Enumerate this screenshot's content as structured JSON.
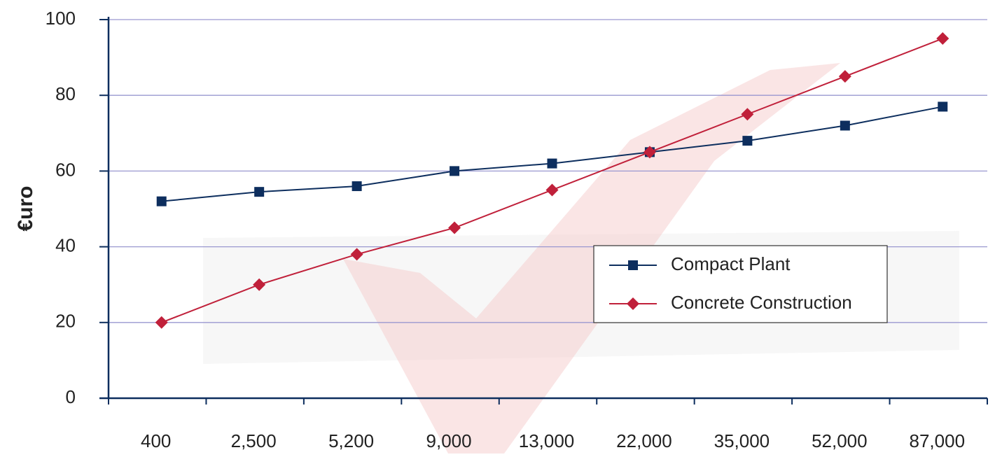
{
  "chart_data": {
    "type": "line",
    "y_label": "€uro",
    "categories": [
      "400",
      "2,500",
      "5,200",
      "9,000",
      "13,000",
      "22,000",
      "35,000",
      "52,000",
      "87,000"
    ],
    "series": [
      {
        "name": "Compact Plant",
        "color": "#0d2e5e",
        "marker": "square",
        "values": [
          52,
          54.5,
          56,
          60,
          62,
          65,
          68,
          72,
          77
        ]
      },
      {
        "name": "Concrete Construction",
        "color": "#c0203a",
        "marker": "diamond",
        "values": [
          20,
          30,
          38,
          45,
          55,
          65,
          75,
          85,
          95
        ]
      }
    ],
    "ylim": [
      0,
      100
    ],
    "yticks": [
      0,
      20,
      40,
      60,
      80,
      100
    ],
    "grid": true,
    "grid_color": "#9a98d0",
    "axis_color": "#0d2e5e",
    "legend": "lower right"
  }
}
